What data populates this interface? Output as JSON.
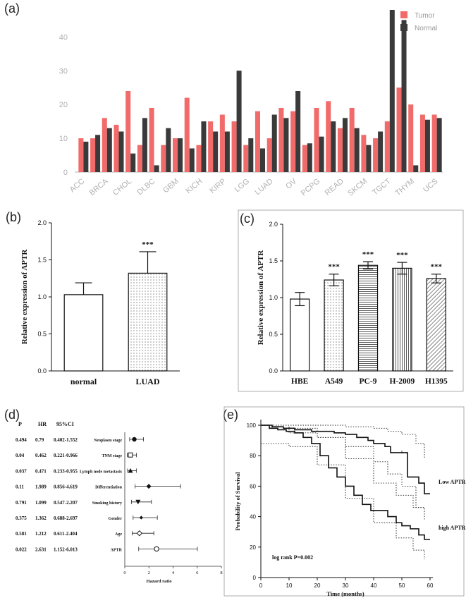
{
  "panels": {
    "a": "(a)",
    "b": "(b)",
    "c": "(c)",
    "d": "(d)",
    "e": "(e)"
  },
  "colors": {
    "tumor": "#f26b6b",
    "normal": "#3a3a3a",
    "axis_light": "#b0b0b0",
    "ink": "#111111"
  },
  "chart_data": [
    {
      "id": "a",
      "type": "bar",
      "categories": [
        "ACC",
        "",
        "BRCA",
        "",
        "CHOL",
        "",
        "DLBC",
        "",
        "GBM",
        "",
        "KICH",
        "",
        "KIRP",
        "",
        "LGG",
        "",
        "LUAD",
        "",
        "OV",
        "",
        "PCPG",
        "",
        "READ",
        "",
        "SKCM",
        "",
        "TGCT",
        "",
        "THYM",
        "",
        "UCS"
      ],
      "category_labels": [
        "ACC",
        "BRCA",
        "CHOL",
        "DLBC",
        "GBM",
        "KICH",
        "KIRP",
        "LGG",
        "LUAD",
        "OV",
        "PCPG",
        "READ",
        "SKCM",
        "TGCT",
        "THYM",
        "UCS"
      ],
      "series": [
        {
          "name": "Tumor",
          "values": [
            10,
            10,
            16,
            14,
            24,
            8,
            19,
            8,
            10,
            22,
            8,
            15,
            17,
            15,
            8,
            18,
            10,
            19,
            18,
            8,
            19,
            21,
            13,
            19,
            11,
            10,
            15,
            25,
            20,
            17,
            17
          ]
        },
        {
          "name": "Normal",
          "values": [
            9,
            11,
            13,
            12,
            5.5,
            16,
            2,
            13,
            10,
            7,
            15,
            12,
            12,
            30,
            10,
            7,
            17,
            16,
            24,
            8.5,
            10.5,
            15,
            16,
            13,
            8,
            12,
            48,
            45,
            2,
            15.5,
            16
          ]
        }
      ],
      "ylim": [
        0,
        48
      ],
      "yticks": [
        0,
        10,
        20,
        30,
        40
      ],
      "legend_position": "top-right"
    },
    {
      "id": "b",
      "type": "bar",
      "categories": [
        "normal",
        "LUAD"
      ],
      "values": [
        1.03,
        1.32
      ],
      "errors": [
        0.16,
        0.29
      ],
      "significance": [
        "",
        "***"
      ],
      "ylabel": "Relative expression of  APTR",
      "ylim": [
        0,
        2.0
      ],
      "yticks": [
        "0.0",
        "0.5",
        "1.0",
        "1.5",
        "2.0"
      ]
    },
    {
      "id": "c",
      "type": "bar",
      "categories": [
        "HBE",
        "A549",
        "PC-9",
        "H-2009",
        "H1395"
      ],
      "values": [
        0.98,
        1.24,
        1.44,
        1.4,
        1.26
      ],
      "errors": [
        0.09,
        0.08,
        0.05,
        0.08,
        0.06
      ],
      "significance": [
        "",
        "***",
        "***",
        "***",
        "***"
      ],
      "ylabel": "Relative expression of  APTR",
      "ylim": [
        0,
        2.0
      ],
      "yticks": [
        "0.0",
        "0.5",
        "1.0",
        "1.5",
        "2.0"
      ]
    },
    {
      "id": "d",
      "type": "forest",
      "columns": {
        "p": "P",
        "hr": "HR",
        "ci": "95%CI"
      },
      "rows": [
        {
          "p": "0.494",
          "hr": "0.79",
          "ci": "0.402-1.552",
          "label": "Neoplasm stage",
          "est": 0.79,
          "lo": 0.402,
          "hi": 1.552,
          "marker": "filled-circle"
        },
        {
          "p": "0.04",
          "hr": "0.462",
          "ci": "0.221-0.966",
          "label": "TNM stage",
          "est": 0.462,
          "lo": 0.221,
          "hi": 0.966,
          "marker": "open-square"
        },
        {
          "p": "0.037",
          "hr": "0.471",
          "ci": "0.233-0.955",
          "label": "Lymph node metastasis",
          "est": 0.471,
          "lo": 0.233,
          "hi": 0.955,
          "marker": "filled-triangle-up"
        },
        {
          "p": "0.11",
          "hr": "1.989",
          "ci": "0.856-4.619",
          "label": "Differentiation",
          "est": 1.989,
          "lo": 0.856,
          "hi": 4.619,
          "marker": "filled-diamond"
        },
        {
          "p": "0.791",
          "hr": "1.099",
          "ci": "0.547-2.207",
          "label": "Smoking history",
          "est": 1.099,
          "lo": 0.547,
          "hi": 2.207,
          "marker": "filled-triangle-down"
        },
        {
          "p": "0.375",
          "hr": "1.362",
          "ci": "0.688-2.697",
          "label": "Gender",
          "est": 1.362,
          "lo": 0.688,
          "hi": 2.697,
          "marker": "filled-diamond-small"
        },
        {
          "p": "0.581",
          "hr": "1.212",
          "ci": "0.611-2.404",
          "label": "Age",
          "est": 1.212,
          "lo": 0.611,
          "hi": 2.404,
          "marker": "open-diamond"
        },
        {
          "p": "0.022",
          "hr": "2.631",
          "ci": "1.152-6.013",
          "label": "APTR",
          "est": 2.631,
          "lo": 1.152,
          "hi": 6.013,
          "marker": "open-circle"
        }
      ],
      "xlabel": "Hazard ratio",
      "xlim": [
        0,
        8
      ],
      "xticks": [
        0,
        2,
        4,
        6,
        8
      ]
    },
    {
      "id": "e",
      "type": "line",
      "xlabel": "Time (months)",
      "ylabel": "Probability of Survival",
      "xlim": [
        0,
        60
      ],
      "ylim": [
        0,
        100
      ],
      "xticks": [
        0,
        10,
        20,
        30,
        40,
        50,
        60
      ],
      "yticks": [
        0,
        20,
        40,
        60,
        80,
        100
      ],
      "annotation": "log rank P=0.002",
      "series": [
        {
          "name": "Low APTR",
          "x": [
            0,
            4,
            8,
            12,
            18,
            22,
            26,
            30,
            34,
            38,
            40,
            44,
            46,
            50,
            52,
            55,
            56,
            58,
            60
          ],
          "y": [
            100,
            99,
            98,
            97,
            96,
            96,
            95,
            94,
            92,
            90,
            88,
            86,
            82,
            82,
            66,
            66,
            62,
            55,
            55
          ]
        },
        {
          "name": "high APTR",
          "x": [
            0,
            3,
            6,
            9,
            12,
            15,
            18,
            21,
            24,
            27,
            30,
            33,
            36,
            39,
            42,
            45,
            48,
            50,
            53,
            56,
            58,
            60
          ],
          "y": [
            100,
            98,
            97,
            96,
            95,
            92,
            88,
            80,
            72,
            66,
            60,
            54,
            48,
            44,
            44,
            40,
            36,
            34,
            32,
            28,
            25,
            25
          ]
        }
      ],
      "ci_bands": [
        {
          "of": "Low APTR",
          "upper_x": [
            0,
            10,
            20,
            30,
            40,
            45,
            50,
            55,
            58
          ],
          "upper_y": [
            100,
            100,
            100,
            99,
            98,
            96,
            94,
            88,
            78
          ],
          "lower_x": [
            0,
            10,
            20,
            30,
            40,
            45,
            50,
            55,
            58
          ],
          "lower_y": [
            100,
            95,
            92,
            86,
            76,
            68,
            60,
            46,
            38
          ]
        },
        {
          "of": "high APTR",
          "upper_x": [
            0,
            10,
            20,
            30,
            40,
            48,
            54,
            58
          ],
          "upper_y": [
            100,
            98,
            92,
            78,
            62,
            54,
            46,
            40
          ],
          "lower_x": [
            0,
            10,
            20,
            30,
            40,
            48,
            54,
            58
          ],
          "lower_y": [
            88,
            86,
            74,
            52,
            36,
            26,
            18,
            12
          ]
        }
      ]
    }
  ]
}
